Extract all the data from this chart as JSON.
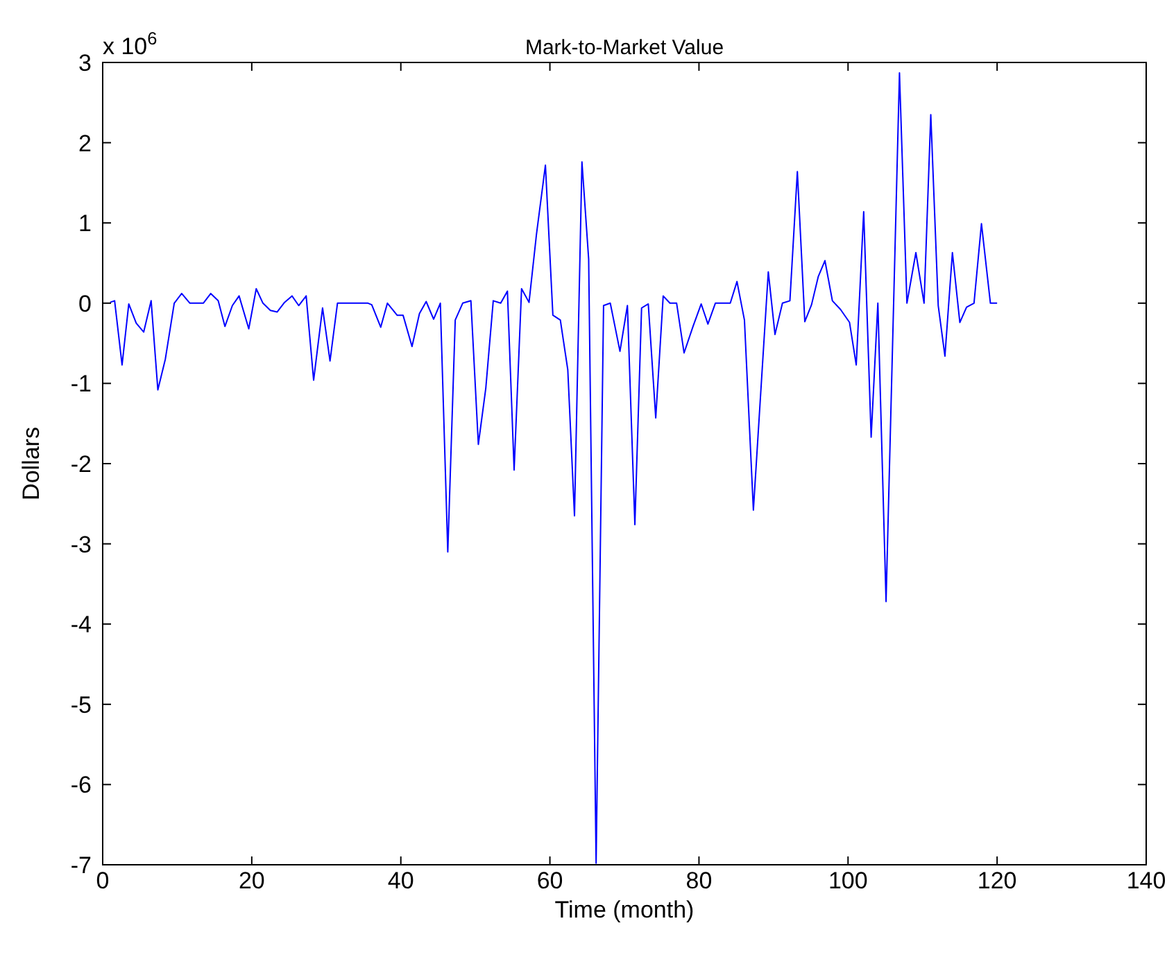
{
  "chart_data": {
    "type": "line",
    "title": "Mark-to-Market Value",
    "xlabel": "Time (month)",
    "ylabel": "Dollars",
    "annotations": [
      "x 10$^{6}$"
    ],
    "xlim": [
      0,
      140
    ],
    "xticks": [
      0,
      20,
      40,
      60,
      80,
      100,
      120,
      140
    ],
    "ylim": [
      -7,
      3
    ],
    "yticks": [
      -7,
      -6,
      -5,
      -4,
      -3,
      -2,
      -1,
      0,
      1,
      2,
      3
    ],
    "marker": "none",
    "line_style": "solid",
    "series": [
      {
        "color": "#0000ff",
        "x": [
          1.0,
          1.6,
          2.6,
          3.5,
          4.5,
          5.5,
          6.5,
          7.4,
          8.4,
          9.6,
          10.6,
          11.7,
          13.5,
          14.5,
          15.5,
          16.4,
          17.4,
          18.3,
          19.6,
          20.6,
          21.5,
          22.5,
          23.4,
          24.4,
          25.4,
          26.3,
          27.3,
          28.3,
          29.5,
          30.5,
          31.5,
          35.6,
          36.1,
          37.3,
          38.2,
          39.5,
          40.3,
          41.5,
          42.5,
          43.4,
          44.4,
          45.3,
          46.3,
          47.3,
          48.3,
          49.4,
          50.4,
          51.4,
          52.4,
          53.4,
          54.3,
          55.2,
          56.2,
          57.2,
          58.2,
          59.4,
          60.4,
          61.4,
          62.4,
          63.3,
          64.3,
          65.2,
          66.2,
          67.2,
          68.1,
          69.4,
          70.4,
          71.4,
          72.3,
          73.2,
          74.2,
          75.2,
          76.1,
          77.0,
          78.0,
          79.2,
          80.3,
          81.2,
          82.2,
          84.2,
          85.1,
          86.1,
          87.3,
          89.3,
          90.2,
          91.2,
          92.2,
          93.2,
          94.2,
          95.1,
          96.0,
          96.9,
          97.9,
          99.0,
          100.2,
          101.1,
          102.1,
          103.1,
          104.0,
          105.1,
          106.9,
          107.9,
          109.1,
          110.2,
          111.1,
          112.1,
          113.0,
          114.0,
          115.0,
          115.9,
          116.9,
          117.9,
          119.1,
          120.0
        ],
        "values": [
          0.01,
          0.03,
          -0.77,
          -0.01,
          -0.25,
          -0.36,
          0.03,
          -1.08,
          -0.7,
          0,
          0.12,
          0,
          0,
          0.12,
          0.03,
          -0.29,
          -0.03,
          0.09,
          -0.32,
          0.18,
          0,
          -0.09,
          -0.11,
          0.01,
          0.09,
          -0.03,
          0.09,
          -0.96,
          -0.06,
          -0.72,
          0,
          0,
          -0.02,
          -0.3,
          0,
          -0.15,
          -0.15,
          -0.54,
          -0.13,
          0.02,
          -0.2,
          0,
          -3.1,
          -0.21,
          0,
          0.03,
          -1.76,
          -1.06,
          0.03,
          0,
          0.15,
          -2.08,
          0.18,
          0.01,
          0.86,
          1.72,
          -0.15,
          -0.21,
          -0.83,
          -2.65,
          1.76,
          0.55,
          -6.98,
          -0.03,
          0,
          -0.6,
          -0.03,
          -2.76,
          -0.06,
          -0.01,
          -1.43,
          0.09,
          0,
          0,
          -0.62,
          -0.29,
          -0.01,
          -0.26,
          0,
          0,
          0.27,
          -0.21,
          -2.58,
          0.39,
          -0.39,
          0,
          0.03,
          1.64,
          -0.23,
          -0.02,
          0.33,
          0.53,
          0.03,
          -0.08,
          -0.24,
          -0.77,
          1.14,
          -1.67,
          0,
          -3.72,
          2.87,
          0,
          0.63,
          0,
          2.35,
          -0.03,
          -0.66,
          0.63,
          -0.24,
          -0.05,
          0,
          0.99,
          0,
          0
        ]
      }
    ]
  }
}
